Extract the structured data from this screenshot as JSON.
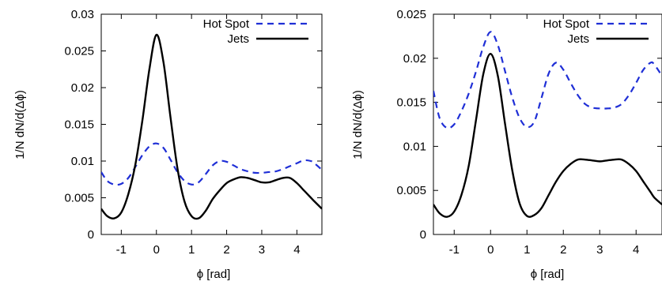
{
  "chart_data": [
    {
      "type": "line",
      "title": "",
      "xlabel": "ϕ [rad]",
      "ylabel": "1/N dN/d(Δϕ)",
      "xlim": [
        -1.5708,
        4.7124
      ],
      "ylim": [
        0,
        0.03
      ],
      "xticks": [
        -1,
        0,
        1,
        2,
        3,
        4
      ],
      "yticks": [
        0,
        0.005,
        0.01,
        0.015,
        0.02,
        0.025,
        0.03
      ],
      "ytick_labels": [
        "0",
        "0.005",
        "0.01",
        "0.015",
        "0.02",
        "0.025",
        "0.03"
      ],
      "legend_position": "top-right",
      "grid": false,
      "series": [
        {
          "name": "Hot Spot",
          "style": "dashed",
          "color": "#1f2fd6",
          "x": [
            -1.5708,
            -1.4,
            -1.2,
            -1.0,
            -0.8,
            -0.6,
            -0.4,
            -0.2,
            0.0,
            0.2,
            0.4,
            0.6,
            0.8,
            1.0,
            1.2,
            1.4,
            1.6,
            1.8,
            2.0,
            2.2,
            2.4,
            2.6,
            2.8,
            3.0,
            3.2,
            3.4,
            3.6,
            3.8,
            4.0,
            4.2,
            4.4,
            4.5,
            4.7124
          ],
          "y": [
            0.0085,
            0.0073,
            0.0068,
            0.0069,
            0.0077,
            0.0092,
            0.0108,
            0.012,
            0.0124,
            0.0118,
            0.0102,
            0.0085,
            0.0073,
            0.0068,
            0.0071,
            0.0082,
            0.0094,
            0.01,
            0.0099,
            0.0094,
            0.0089,
            0.0086,
            0.0084,
            0.0084,
            0.0085,
            0.0086,
            0.0089,
            0.0093,
            0.0097,
            0.0101,
            0.01,
            0.0097,
            0.0088
          ]
        },
        {
          "name": "Jets",
          "style": "solid",
          "color": "#000000",
          "x": [
            -1.5708,
            -1.4,
            -1.2,
            -1.0,
            -0.8,
            -0.6,
            -0.4,
            -0.2,
            0.0,
            0.2,
            0.4,
            0.6,
            0.8,
            1.0,
            1.2,
            1.4,
            1.6,
            1.8,
            2.0,
            2.2,
            2.4,
            2.6,
            2.8,
            3.0,
            3.2,
            3.4,
            3.6,
            3.8,
            4.0,
            4.2,
            4.4,
            4.5,
            4.7124
          ],
          "y": [
            0.0035,
            0.0025,
            0.0022,
            0.003,
            0.0055,
            0.0095,
            0.0155,
            0.0225,
            0.0272,
            0.0235,
            0.016,
            0.009,
            0.0045,
            0.0025,
            0.0022,
            0.0032,
            0.0048,
            0.006,
            0.007,
            0.0075,
            0.0078,
            0.0077,
            0.0074,
            0.0071,
            0.0071,
            0.0074,
            0.0077,
            0.0077,
            0.007,
            0.006,
            0.005,
            0.0045,
            0.0035
          ]
        }
      ]
    },
    {
      "type": "line",
      "title": "",
      "xlabel": "ϕ [rad]",
      "ylabel": "1/N dN/d(Δϕ)",
      "xlim": [
        -1.5708,
        4.7124
      ],
      "ylim": [
        0,
        0.025
      ],
      "xticks": [
        -1,
        0,
        1,
        2,
        3,
        4
      ],
      "yticks": [
        0,
        0.005,
        0.01,
        0.015,
        0.02,
        0.025
      ],
      "ytick_labels": [
        "0",
        "0.005",
        "0.01",
        "0.015",
        "0.02",
        "0.025"
      ],
      "legend_position": "top-right",
      "grid": false,
      "series": [
        {
          "name": "Hot Spot",
          "style": "dashed",
          "color": "#1f2fd6",
          "x": [
            -1.5708,
            -1.4,
            -1.2,
            -1.0,
            -0.8,
            -0.6,
            -0.4,
            -0.2,
            0.0,
            0.2,
            0.4,
            0.6,
            0.8,
            1.0,
            1.2,
            1.4,
            1.6,
            1.8,
            2.0,
            2.2,
            2.4,
            2.6,
            2.8,
            3.0,
            3.2,
            3.4,
            3.6,
            3.8,
            4.0,
            4.2,
            4.4,
            4.5,
            4.7124
          ],
          "y": [
            0.0163,
            0.0132,
            0.0121,
            0.0125,
            0.014,
            0.016,
            0.0185,
            0.0213,
            0.023,
            0.0215,
            0.0185,
            0.0155,
            0.0132,
            0.0122,
            0.0128,
            0.0155,
            0.0183,
            0.0195,
            0.0187,
            0.0172,
            0.0158,
            0.0148,
            0.0144,
            0.0143,
            0.0143,
            0.0144,
            0.0148,
            0.0158,
            0.0172,
            0.0187,
            0.0195,
            0.0193,
            0.018
          ]
        },
        {
          "name": "Jets",
          "style": "solid",
          "color": "#000000",
          "x": [
            -1.5708,
            -1.4,
            -1.2,
            -1.0,
            -0.8,
            -0.6,
            -0.4,
            -0.2,
            0.0,
            0.2,
            0.4,
            0.6,
            0.8,
            1.0,
            1.2,
            1.4,
            1.6,
            1.8,
            2.0,
            2.2,
            2.4,
            2.6,
            2.8,
            3.0,
            3.2,
            3.4,
            3.6,
            3.8,
            4.0,
            4.2,
            4.4,
            4.5,
            4.7124
          ],
          "y": [
            0.0034,
            0.0024,
            0.002,
            0.0026,
            0.0045,
            0.0078,
            0.013,
            0.0182,
            0.0205,
            0.018,
            0.0125,
            0.0072,
            0.0035,
            0.0021,
            0.0022,
            0.003,
            0.0045,
            0.006,
            0.0072,
            0.008,
            0.0085,
            0.0085,
            0.0084,
            0.0083,
            0.0084,
            0.0085,
            0.0085,
            0.008,
            0.0072,
            0.006,
            0.0048,
            0.0042,
            0.0034
          ]
        }
      ]
    }
  ]
}
